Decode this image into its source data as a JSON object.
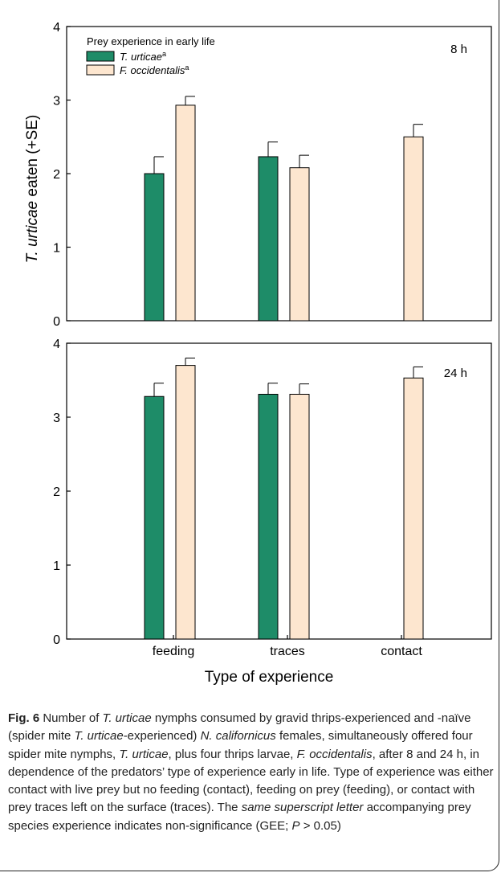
{
  "chart_data": {
    "type": "bar",
    "x_label": "Type of experience",
    "y_label_italic": "T. urticae",
    "y_label_rest": " eaten (+SE)",
    "categories": [
      "feeding",
      "traces",
      "contact"
    ],
    "colors": {
      "T_urticae": "#1e8c68",
      "F_occidentalis": "#fde6cf",
      "outline": "#000000"
    },
    "legend": {
      "title": "Prey experience in early life",
      "entries": [
        {
          "label": "T. urticae",
          "superscript": "a"
        },
        {
          "label": "F. occidentalis",
          "superscript": "a"
        }
      ],
      "placement": "top-left"
    },
    "panels": [
      {
        "label": "8 h",
        "ylim": [
          0,
          4
        ],
        "yticks": [
          "0",
          "1",
          "2",
          "3",
          "4"
        ],
        "series": [
          {
            "name": "T. urticae",
            "values": [
              2.0,
              2.23,
              null
            ],
            "se": [
              0.23,
              0.2,
              null
            ]
          },
          {
            "name": "F. occidentalis",
            "values": [
              2.93,
              2.08,
              2.5
            ],
            "se": [
              0.12,
              0.17,
              0.17
            ]
          }
        ]
      },
      {
        "label": "24 h",
        "ylim": [
          0,
          4
        ],
        "yticks": [
          "0",
          "1",
          "2",
          "3",
          "4"
        ],
        "series": [
          {
            "name": "T. urticae",
            "values": [
              3.28,
              3.31,
              null
            ],
            "se": [
              0.18,
              0.15,
              null
            ]
          },
          {
            "name": "F. occidentalis",
            "values": [
              3.7,
              3.31,
              3.53
            ],
            "se": [
              0.1,
              0.14,
              0.15
            ]
          }
        ]
      }
    ]
  },
  "caption": {
    "fig_label": "Fig. 6",
    "parts": [
      {
        "t": "  Number of "
      },
      {
        "t": "T. urticae",
        "i": true
      },
      {
        "t": " nymphs consumed by gravid thrips-experienced and -naïve (spider mite "
      },
      {
        "t": "T. urticae",
        "i": true
      },
      {
        "t": "-experienced) "
      },
      {
        "t": "N. californicus",
        "i": true
      },
      {
        "t": " females, simultaneously offered four spider mite nymphs, "
      },
      {
        "t": "T. urticae",
        "i": true
      },
      {
        "t": ", plus four thrips larvae, "
      },
      {
        "t": "F. occidentalis",
        "i": true
      },
      {
        "t": ", after 8 and 24 h, in dependence of the predators’ type of experience early in life. Type of experience was either contact with live prey but no feeding (contact), feeding on prey (feeding), or contact with prey traces left on the surface (traces). The "
      },
      {
        "t": "same superscript letter",
        "i": true
      },
      {
        "t": " accompanying prey species experience indicates non-significance (GEE; "
      },
      {
        "t": "P",
        "i": true
      },
      {
        "t": " > 0.05)"
      }
    ]
  }
}
